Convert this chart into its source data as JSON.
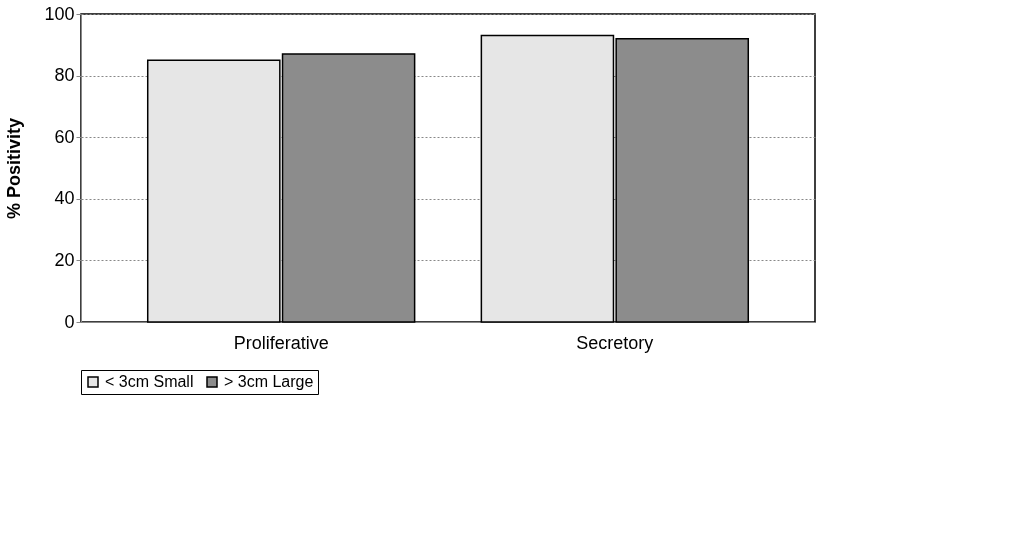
{
  "chart_data": {
    "type": "bar",
    "ylabel": "% Positivity",
    "categories": [
      "Proliferative",
      "Secretory"
    ],
    "series": [
      {
        "name": "< 3cm Small",
        "color": "#e6e6e6",
        "values": [
          85,
          93
        ]
      },
      {
        "name": "> 3cm Large",
        "color": "#8c8c8c",
        "values": [
          87,
          92
        ]
      }
    ],
    "ylim": [
      0,
      100
    ],
    "yticks": [
      0,
      20,
      40,
      60,
      80,
      100
    ],
    "grid": "y",
    "legend": "bottom"
  }
}
